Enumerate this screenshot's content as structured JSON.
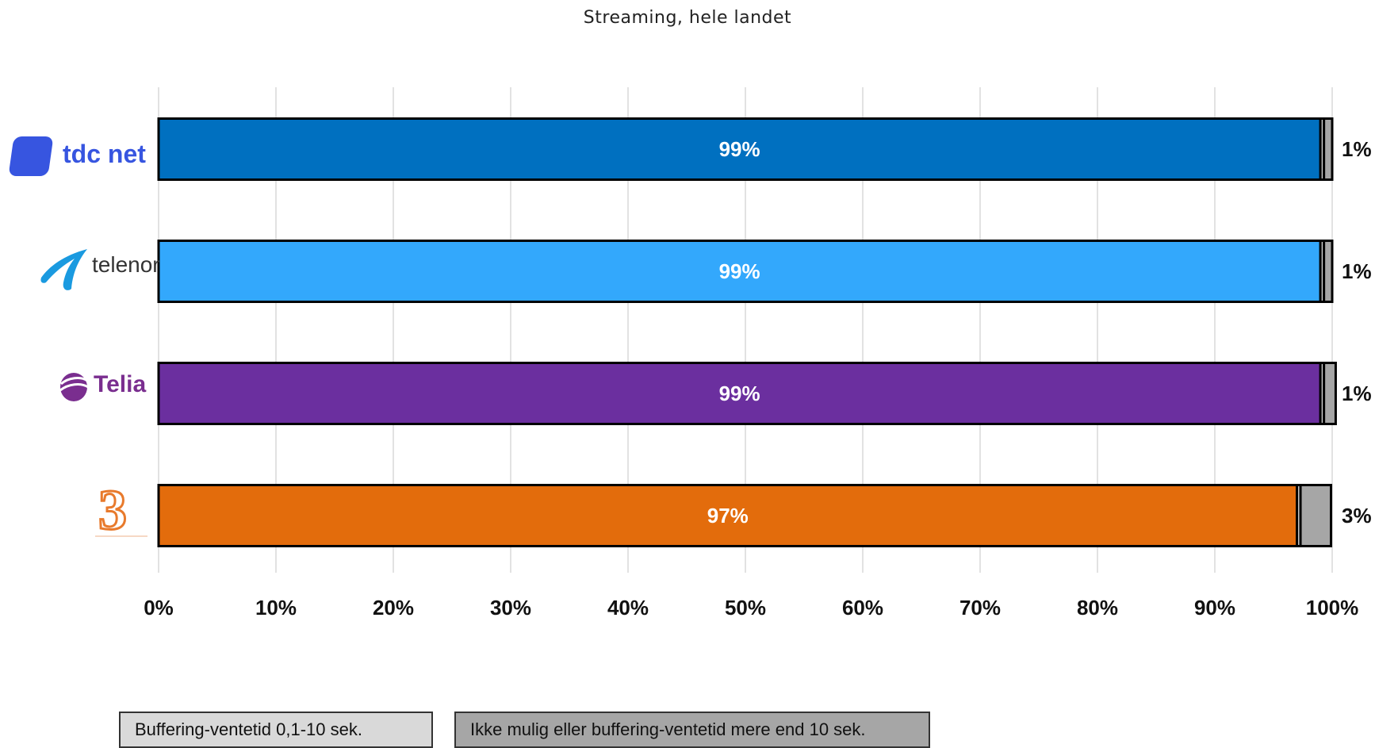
{
  "chart_data": {
    "type": "bar",
    "orientation": "horizontal",
    "stacked": true,
    "title": "Streaming, hele landet",
    "categories": [
      "tdc net",
      "telenor",
      "Telia",
      "3"
    ],
    "category_colors": [
      "#0070c0",
      "#33a8fc",
      "#6b2f9f",
      "#e36c0c"
    ],
    "series": [
      {
        "values": [
          99,
          99,
          99,
          97
        ],
        "labels": [
          "99%",
          "99%",
          "99%",
          "97%"
        ]
      },
      {
        "name": "Buffering-ventetid 0,1-10 sek.",
        "values": [
          0.3,
          0.3,
          0.3,
          0.3
        ],
        "color": "#d9d9d9"
      },
      {
        "name": "Ikke mulig eller buffering-ventetid mere end 10 sek.",
        "values": [
          0.7,
          0.7,
          1.0,
          2.6
        ],
        "labels": [
          "1%",
          "1%",
          "1%",
          "3%"
        ],
        "color": "#a6a6a6"
      }
    ],
    "xlim": [
      0,
      100
    ],
    "x_ticks": [
      "0%",
      "10%",
      "20%",
      "30%",
      "40%",
      "50%",
      "60%",
      "70%",
      "80%",
      "90%",
      "100%"
    ],
    "grid": "vertical",
    "legend_position": "bottom"
  },
  "logos": {
    "tdc": {
      "text": "tdc net",
      "color": "#3755e0"
    },
    "telenor": {
      "text": "telenor",
      "color": "#1a9ae0"
    },
    "telia": {
      "text": "Telia",
      "color": "#7a2e8f"
    },
    "three": {
      "text": "3",
      "color": "#e87a2c"
    }
  }
}
